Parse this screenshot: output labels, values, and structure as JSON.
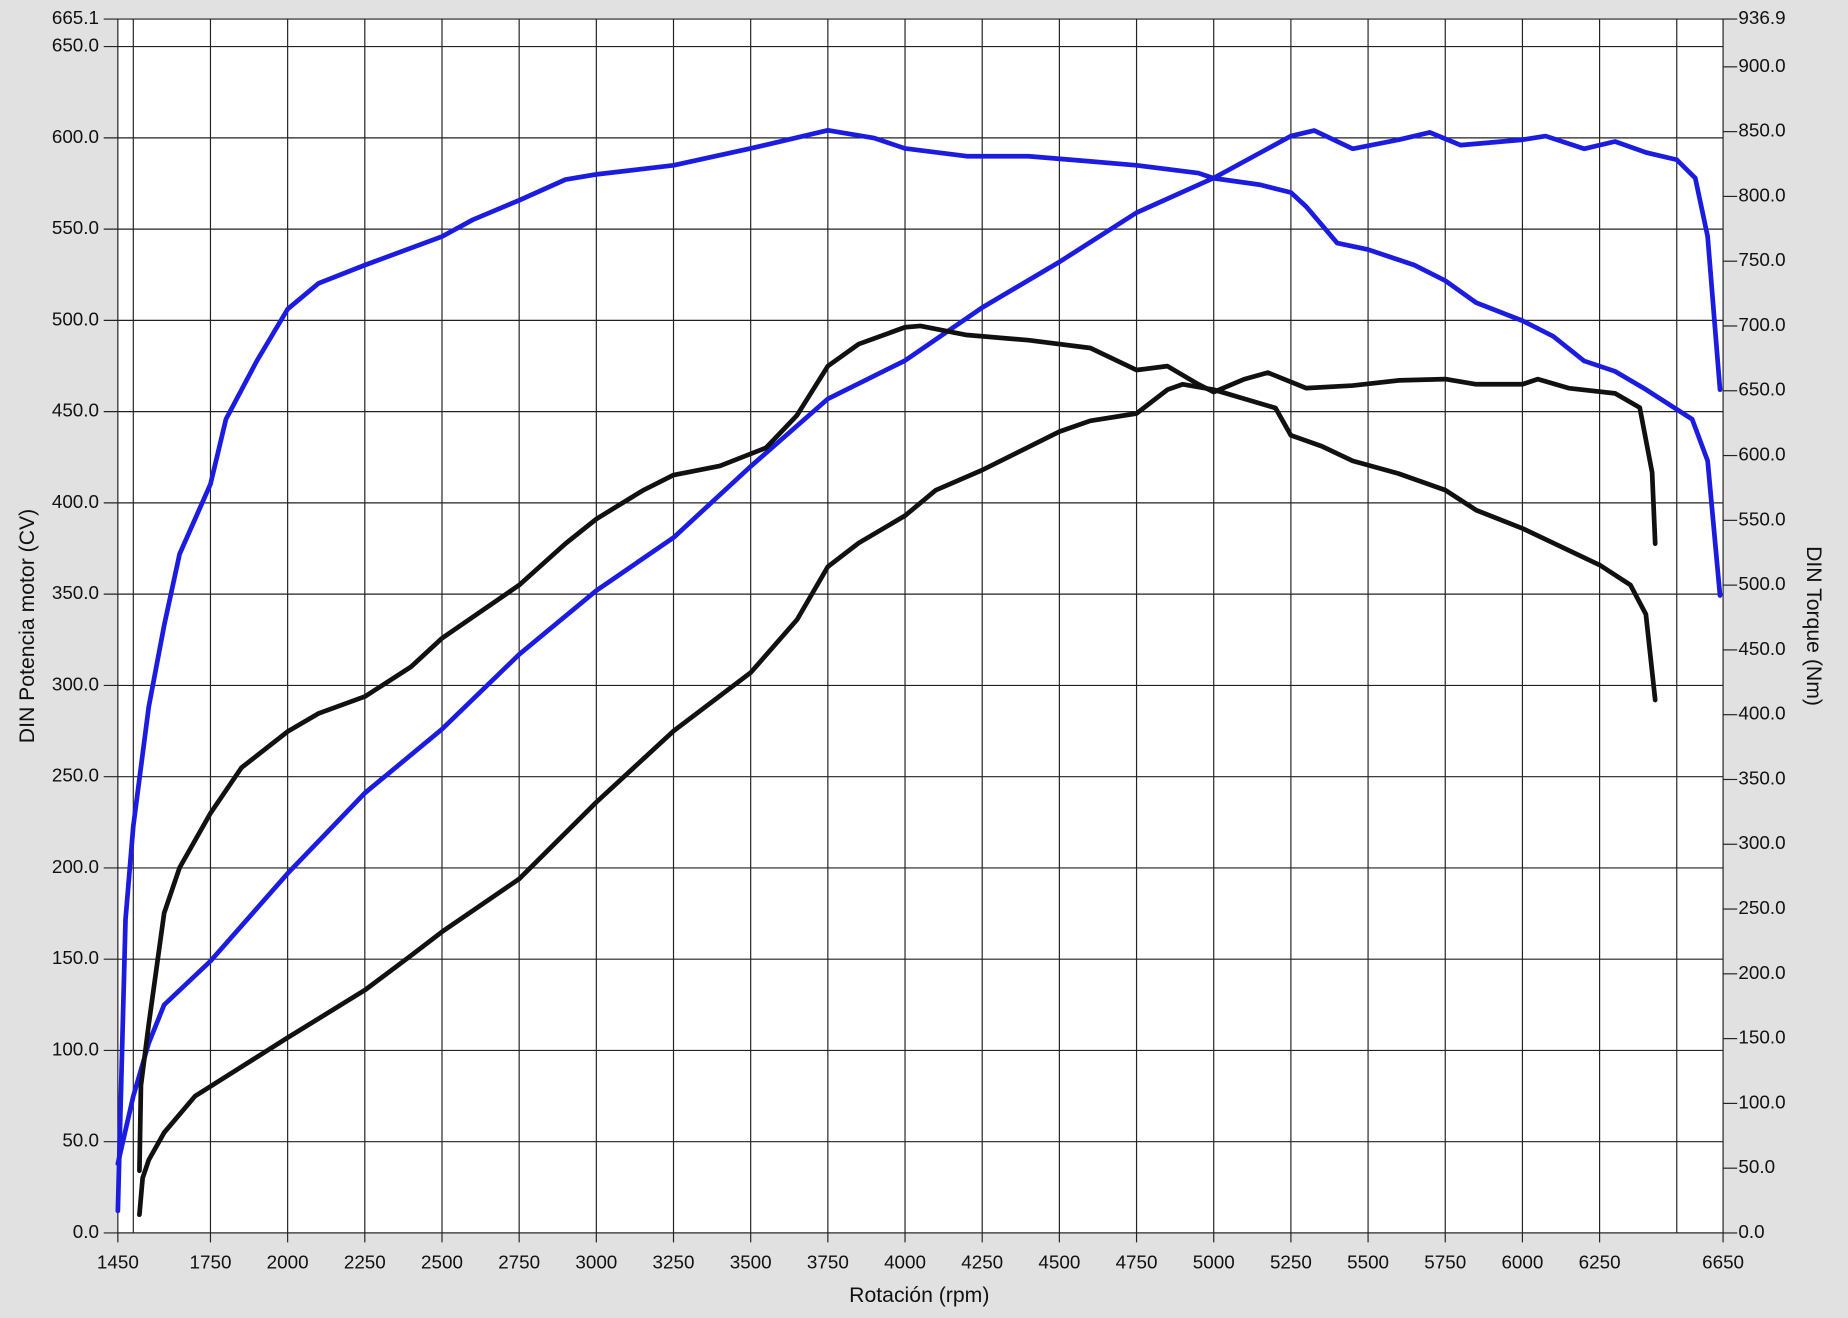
{
  "chart_data": {
    "type": "line",
    "xlabel": "Rotación (rpm)",
    "ylabel": "DIN Potencia motor (CV)",
    "y2label": "DIN Torque (Nm)",
    "xlim": [
      1450,
      6650
    ],
    "xticks": [
      1450,
      1750,
      2000,
      2250,
      2500,
      2750,
      3000,
      3250,
      3500,
      3750,
      4000,
      4250,
      4500,
      4750,
      5000,
      5250,
      5500,
      5750,
      6000,
      6250,
      6650
    ],
    "xgrid": [
      1500,
      1750,
      2000,
      2250,
      2500,
      2750,
      3000,
      3250,
      3500,
      3750,
      4000,
      4250,
      4500,
      4750,
      5000,
      5250,
      5500,
      5750,
      6000,
      6250,
      6500
    ],
    "ylim": [
      0,
      665.1
    ],
    "yticks": [
      {
        "value": 0,
        "label": "0.0"
      },
      {
        "value": 50,
        "label": "50.0"
      },
      {
        "value": 100,
        "label": "100.0"
      },
      {
        "value": 150,
        "label": "150.0"
      },
      {
        "value": 200,
        "label": "200.0"
      },
      {
        "value": 250,
        "label": "250.0"
      },
      {
        "value": 300,
        "label": "300.0"
      },
      {
        "value": 350,
        "label": "350.0"
      },
      {
        "value": 400,
        "label": "400.0"
      },
      {
        "value": 450,
        "label": "450.0"
      },
      {
        "value": 500,
        "label": "500.0"
      },
      {
        "value": 550,
        "label": "550.0"
      },
      {
        "value": 600,
        "label": "600.0"
      },
      {
        "value": 650,
        "label": "650.0"
      },
      665.1
    ],
    "y2lim": [
      0,
      936.9
    ],
    "y2ticks": [
      {
        "value": 0,
        "label": "0.0"
      },
      {
        "value": 50,
        "label": "50.0"
      },
      {
        "value": 100,
        "label": "100.0"
      },
      {
        "value": 150,
        "label": "150.0"
      },
      {
        "value": 200,
        "label": "200.0"
      },
      {
        "value": 250,
        "label": "250.0"
      },
      {
        "value": 300,
        "label": "300.0"
      },
      {
        "value": 350,
        "label": "350.0"
      },
      {
        "value": 400,
        "label": "400.0"
      },
      {
        "value": 450,
        "label": "450.0"
      },
      {
        "value": 500,
        "label": "500.0"
      },
      {
        "value": 550,
        "label": "550.0"
      },
      {
        "value": 600,
        "label": "600.0"
      },
      {
        "value": 650,
        "label": "650.0"
      },
      {
        "value": 700,
        "label": "700.0"
      },
      {
        "value": 750,
        "label": "750.0"
      },
      {
        "value": 800,
        "label": "800.0"
      },
      {
        "value": 850,
        "label": "850.0"
      },
      {
        "value": 900,
        "label": "900.0"
      },
      936.9
    ],
    "grid": true,
    "series": [
      {
        "color": "#1c1ce0",
        "axis": "y2",
        "x": [
          1450,
          1475,
          1500,
          1550,
          1600,
          1650,
          1750,
          1800,
          1900,
          2000,
          2100,
          2250,
          2500,
          2600,
          2750,
          2900,
          3000,
          3250,
          3500,
          3750,
          3900,
          4000,
          4200,
          4400,
          4600,
          4750,
          4950,
          5000,
          5150,
          5250,
          5300,
          5400,
          5500,
          5650,
          5750,
          5850,
          6000,
          6100,
          6200,
          6300,
          6400,
          6550,
          6600,
          6640
        ],
        "values": [
          17,
          242,
          314,
          406,
          469,
          524,
          578,
          628,
          673,
          713,
          733,
          747,
          769,
          782,
          797,
          813,
          817,
          824,
          837,
          851,
          845,
          837,
          831,
          831,
          827,
          824,
          818,
          814,
          809,
          803,
          792,
          764,
          759,
          747,
          735,
          718,
          704,
          692,
          673,
          665,
          651,
          628,
          596,
          492
        ]
      },
      {
        "color": "#1c1ce0",
        "x": [
          1450,
          1500,
          1550,
          1600,
          1750,
          2000,
          2250,
          2500,
          2750,
          3000,
          3250,
          3500,
          3750,
          4000,
          4250,
          4500,
          4750,
          5000,
          5250,
          5325,
          5450,
          5600,
          5700,
          5800,
          6000,
          6075,
          6200,
          6300,
          6400,
          6500,
          6560,
          6600,
          6640
        ],
        "values": [
          38,
          75,
          104,
          125,
          149,
          197,
          241,
          276,
          317,
          352,
          381,
          420,
          457,
          478,
          507,
          532,
          559,
          578,
          601,
          604,
          594,
          599,
          603,
          596,
          599,
          601,
          594,
          598,
          592,
          588,
          578,
          546,
          462
        ]
      },
      {
        "color": "#111111",
        "axis": "y2",
        "x": [
          1520,
          1525,
          1550,
          1600,
          1650,
          1750,
          1850,
          2000,
          2100,
          2250,
          2400,
          2500,
          2750,
          2900,
          3000,
          3150,
          3250,
          3400,
          3550,
          3650,
          3750,
          3850,
          4000,
          4050,
          4200,
          4400,
          4600,
          4750,
          4850,
          4950,
          5000,
          5100,
          5175,
          5300,
          5450,
          5600,
          5750,
          5850,
          6000,
          6050,
          6150,
          6300,
          6380,
          6420,
          6430
        ],
        "values": [
          48,
          114,
          161,
          247,
          282,
          324,
          359,
          387,
          401,
          414,
          437,
          459,
          500,
          532,
          551,
          573,
          585,
          592,
          606,
          631,
          669,
          686,
          699,
          700,
          693,
          689,
          683,
          666,
          669,
          655,
          649,
          659,
          664,
          652,
          654,
          658,
          659,
          655,
          655,
          659,
          652,
          648,
          637,
          587,
          532
        ]
      },
      {
        "color": "#111111",
        "x": [
          1520,
          1530,
          1550,
          1600,
          1700,
          1850,
          2000,
          2250,
          2400,
          2500,
          2750,
          3000,
          3250,
          3500,
          3650,
          3750,
          3850,
          4000,
          4100,
          4250,
          4500,
          4600,
          4750,
          4850,
          4900,
          5000,
          5100,
          5200,
          5250,
          5350,
          5450,
          5600,
          5750,
          5850,
          6000,
          6100,
          6250,
          6350,
          6400,
          6430
        ],
        "values": [
          10,
          30,
          40,
          55,
          75,
          91,
          107,
          133,
          152,
          165,
          194,
          236,
          275,
          307,
          336,
          365,
          378,
          393,
          407,
          418,
          439,
          445,
          449,
          462,
          465,
          462,
          457,
          452,
          437,
          431,
          423,
          416,
          407,
          396,
          386,
          378,
          366,
          355,
          339,
          292
        ]
      }
    ]
  }
}
